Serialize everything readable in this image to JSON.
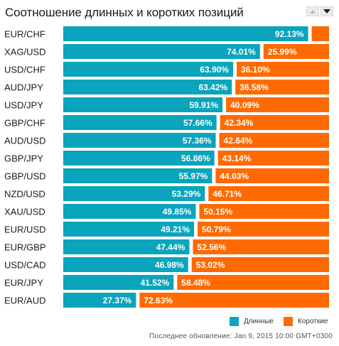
{
  "header": {
    "title": "Соотношение длинных и коротких позиций"
  },
  "footer": {
    "updated_label": "Последнее обновление:",
    "updated_value": "Jan 9, 2015 10:00 GMT+0300"
  },
  "colors": {
    "long": "#0aa4bc",
    "short": "#ff6a00"
  },
  "chart_data": {
    "type": "bar",
    "stacked": true,
    "orientation": "horizontal",
    "categories": [
      "EUR/CHF",
      "XAG/USD",
      "USD/CHF",
      "AUD/JPY",
      "USD/JPY",
      "GBP/CHF",
      "AUD/USD",
      "GBP/JPY",
      "GBP/USD",
      "NZD/USD",
      "XAU/USD",
      "EUR/USD",
      "EUR/GBP",
      "USD/CAD",
      "EUR/JPY",
      "EUR/AUD"
    ],
    "series": [
      {
        "name": "Длинные",
        "values": [
          92.13,
          74.01,
          63.9,
          63.42,
          59.91,
          57.66,
          57.36,
          56.86,
          55.97,
          53.29,
          49.85,
          49.21,
          47.44,
          46.98,
          41.52,
          27.37
        ],
        "labels": [
          "92.13%",
          "74.01%",
          "63.90%",
          "63.42%",
          "59.91%",
          "57.66%",
          "57.36%",
          "56.86%",
          "55.97%",
          "53.29%",
          "49.85%",
          "49.21%",
          "47.44%",
          "46.98%",
          "41.52%",
          "27.37%"
        ]
      },
      {
        "name": "Короткие",
        "values": [
          7.87,
          25.99,
          36.1,
          36.58,
          40.09,
          42.34,
          42.64,
          43.14,
          44.03,
          46.71,
          50.15,
          50.79,
          52.56,
          53.02,
          58.48,
          72.63
        ],
        "labels": [
          "",
          "25.99%",
          "36.10%",
          "36.58%",
          "40.09%",
          "42.34%",
          "42.64%",
          "43.14%",
          "44.03%",
          "46.71%",
          "50.15%",
          "50.79%",
          "52.56%",
          "53.02%",
          "58.48%",
          "72.63%"
        ]
      }
    ],
    "xlim": [
      0,
      100
    ],
    "grid": false,
    "legend": "bottom-right"
  }
}
